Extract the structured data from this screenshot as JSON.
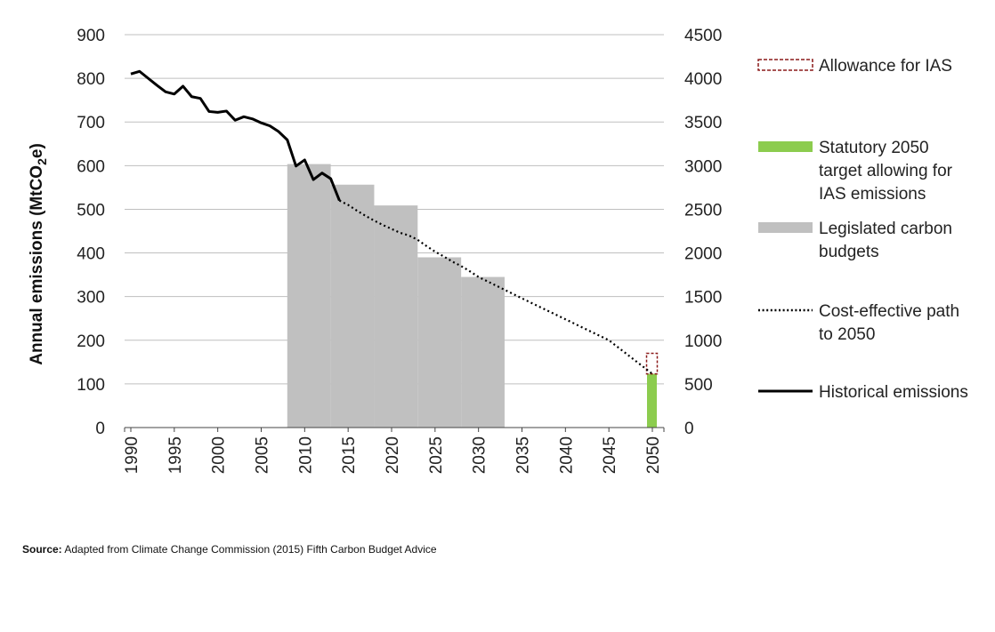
{
  "chart_data": {
    "type": "bar+line",
    "ylabel": "Annual emissions (MtCO2e)",
    "ylabel_parts": {
      "before": "Annual emissions (MtCO",
      "sub": "2",
      "after": "e)"
    },
    "ylim": [
      0,
      900
    ],
    "y2lim": [
      0,
      4500
    ],
    "xlim": [
      1990,
      2050
    ],
    "grid": "horizontal",
    "legend_position": "right",
    "y_ticks": [
      "0",
      "100",
      "200",
      "300",
      "400",
      "500",
      "600",
      "700",
      "800",
      "900"
    ],
    "y2_ticks": [
      "0",
      "500",
      "1000",
      "1500",
      "2000",
      "2500",
      "3000",
      "3500",
      "4000",
      "4500"
    ],
    "x_ticks": [
      "1990",
      "1995",
      "2000",
      "2005",
      "2010",
      "2015",
      "2020",
      "2025",
      "2030",
      "2035",
      "2040",
      "2045",
      "2050"
    ],
    "carbon_budgets": [
      {
        "start": 2008,
        "end": 2013,
        "value": 3018
      },
      {
        "start": 2013,
        "end": 2018,
        "value": 2782
      },
      {
        "start": 2018,
        "end": 2023,
        "value": 2544
      },
      {
        "start": 2023,
        "end": 2028,
        "value": 1950
      },
      {
        "start": 2028,
        "end": 2033,
        "value": 1725
      }
    ],
    "historical": {
      "x": [
        1990,
        1991,
        1992,
        1993,
        1994,
        1995,
        1996,
        1997,
        1998,
        1999,
        2000,
        2001,
        2002,
        2003,
        2004,
        2005,
        2006,
        2007,
        2008,
        2009,
        2010,
        2011,
        2012,
        2013,
        2014
      ],
      "y": [
        810,
        816,
        800,
        784,
        769,
        764,
        782,
        758,
        754,
        724,
        722,
        725,
        704,
        712,
        707,
        698,
        691,
        678,
        659,
        599,
        613,
        568,
        583,
        570,
        520
      ]
    },
    "cost_effective_path": {
      "x": [
        2014,
        2015,
        2016,
        2017,
        2018,
        2019,
        2020,
        2021,
        2022,
        2023,
        2024,
        2025,
        2026,
        2027,
        2028,
        2029,
        2030,
        2035,
        2040,
        2045,
        2050
      ],
      "y": [
        520,
        510,
        497,
        485,
        474,
        464,
        455,
        446,
        440,
        430,
        416,
        403,
        392,
        380,
        370,
        358,
        345,
        296,
        248,
        200,
        123
      ]
    },
    "statutory_2050_target": {
      "x": 2050,
      "value": 123
    },
    "ias_allowance": {
      "x": 2050,
      "from": 123,
      "to": 170
    },
    "legend": [
      {
        "key": "ias",
        "label": [
          "Allowance for IAS"
        ]
      },
      {
        "key": "target",
        "label": [
          "Statutory 2050",
          "target allowing for",
          "IAS emissions"
        ]
      },
      {
        "key": "budget",
        "label": [
          "Legislated carbon",
          "budgets"
        ]
      },
      {
        "key": "path",
        "label": [
          "Cost-effective path",
          "to 2050"
        ]
      },
      {
        "key": "hist",
        "label": [
          "Historical emissions"
        ]
      }
    ],
    "colors": {
      "historical": "#000000",
      "path": "#000000",
      "budget": "#c0c0c0",
      "target": "#8ccc4e",
      "ias": "#8b1a1a",
      "grid": "#bfbfbf"
    }
  },
  "source": {
    "label": "Source:",
    "text": " Adapted from Climate Change Commission (2015) Fifth Carbon Budget Advice"
  }
}
